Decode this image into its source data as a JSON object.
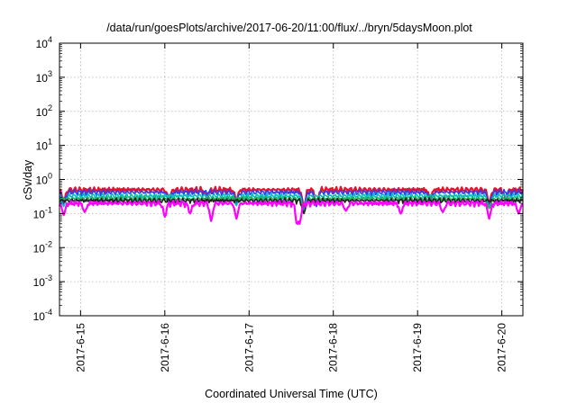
{
  "chart_data": {
    "type": "line",
    "title": "/data/run/goesPlots/archive/2017-06-20/11:00/flux/../bryn/5daysMoon.plot",
    "xlabel": "Coordinated Universal Time (UTC)",
    "ylabel": "cSv/day",
    "yscale": "log",
    "ylim": [
      0.0001,
      10000
    ],
    "xlim": [
      "2017-06-15 00:00",
      "2017-06-20 12:00"
    ],
    "grid": true,
    "x_ticks": [
      "2017-6-15",
      "2017-6-16",
      "2017-6-17",
      "2017-6-18",
      "2017-6-19",
      "2017-6-20"
    ],
    "y_ticks": [
      {
        "base": "10",
        "exp": "-4"
      },
      {
        "base": "10",
        "exp": "-3"
      },
      {
        "base": "10",
        "exp": "-2"
      },
      {
        "base": "10",
        "exp": "-1"
      },
      {
        "base": "10",
        "exp": "0"
      },
      {
        "base": "10",
        "exp": "1"
      },
      {
        "base": "10",
        "exp": "2"
      },
      {
        "base": "10",
        "exp": "3"
      },
      {
        "base": "10",
        "exp": "4"
      }
    ],
    "series": [
      {
        "color": "#e8112d",
        "level": 0.5,
        "dips": [
          {
            "day": 0.05,
            "value": 0.2
          },
          {
            "day": 1.3,
            "value": 0.25
          },
          {
            "day": 1.75,
            "value": 0.28
          },
          {
            "day": 2.1,
            "value": 0.25
          },
          {
            "day": 2.9,
            "value": 0.14
          },
          {
            "day": 3.05,
            "value": 0.2
          },
          {
            "day": 4.4,
            "value": 0.28
          },
          {
            "day": 5.1,
            "value": 0.2
          },
          {
            "day": 5.3,
            "value": 0.25
          }
        ]
      },
      {
        "color": "#2e3cf2",
        "level": 0.42,
        "dips": [
          {
            "day": 0.05,
            "value": 0.18
          },
          {
            "day": 1.3,
            "value": 0.2
          },
          {
            "day": 2.1,
            "value": 0.2
          },
          {
            "day": 2.9,
            "value": 0.12
          },
          {
            "day": 3.05,
            "value": 0.16
          },
          {
            "day": 4.4,
            "value": 0.22
          },
          {
            "day": 5.1,
            "value": 0.17
          }
        ]
      },
      {
        "color": "#00c0c0",
        "level": 0.33,
        "dips": [
          {
            "day": 0.05,
            "value": 0.16
          },
          {
            "day": 2.1,
            "value": 0.17
          },
          {
            "day": 2.9,
            "value": 0.11
          },
          {
            "day": 5.1,
            "value": 0.15
          }
        ]
      },
      {
        "color": "#21b04b",
        "level": 0.27,
        "dips": [
          {
            "day": 2.9,
            "value": 0.1
          },
          {
            "day": 5.1,
            "value": 0.14
          }
        ]
      },
      {
        "color": "#202020",
        "level": 0.24,
        "dips": [
          {
            "day": 2.9,
            "value": 0.1
          }
        ]
      },
      {
        "color": "#ff00ff",
        "level": 0.2,
        "dips": [
          {
            "day": 0.05,
            "value": 0.09
          },
          {
            "day": 0.3,
            "value": 0.11
          },
          {
            "day": 1.25,
            "value": 0.08
          },
          {
            "day": 1.55,
            "value": 0.1
          },
          {
            "day": 1.8,
            "value": 0.06
          },
          {
            "day": 2.1,
            "value": 0.07
          },
          {
            "day": 2.82,
            "value": 0.045
          },
          {
            "day": 2.85,
            "value": 0.05
          },
          {
            "day": 3.4,
            "value": 0.12
          },
          {
            "day": 4.05,
            "value": 0.1
          },
          {
            "day": 4.55,
            "value": 0.11
          },
          {
            "day": 5.1,
            "value": 0.07
          },
          {
            "day": 5.45,
            "value": 0.1
          }
        ]
      }
    ]
  }
}
